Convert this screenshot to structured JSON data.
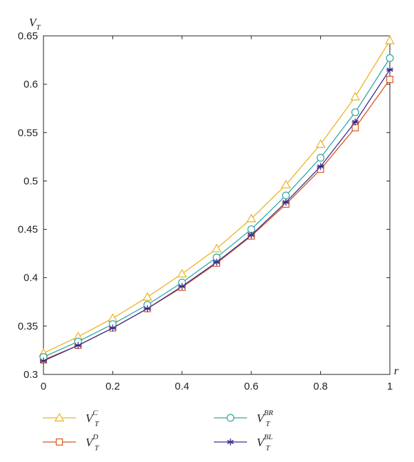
{
  "chart_data": {
    "type": "line",
    "xlabel": "r",
    "ylabel": {
      "main": "V",
      "sub": "T"
    },
    "xlim": [
      0,
      1
    ],
    "ylim": [
      0.3,
      0.65
    ],
    "x": [
      0,
      0.1,
      0.2,
      0.3,
      0.4,
      0.5,
      0.6,
      0.7,
      0.8,
      0.9,
      1.0
    ],
    "xticks": [
      "0",
      "0.2",
      "0.4",
      "0.6",
      "0.8",
      "1"
    ],
    "yticks": [
      "0.3",
      "0.35",
      "0.4",
      "0.45",
      "0.5",
      "0.55",
      "0.6",
      "0.65"
    ],
    "grid": false,
    "legend_position": "bottom",
    "series": [
      {
        "name": "V_T^C",
        "main": "V",
        "sub": "T",
        "sup": "C",
        "marker": "triangle",
        "color": "#EDB120",
        "values": [
          0.322,
          0.339,
          0.358,
          0.38,
          0.404,
          0.43,
          0.461,
          0.496,
          0.538,
          0.587,
          0.645
        ]
      },
      {
        "name": "V_T^D",
        "main": "V",
        "sub": "T",
        "sup": "D",
        "marker": "square",
        "color": "#D95319",
        "values": [
          0.315,
          0.33,
          0.348,
          0.368,
          0.39,
          0.415,
          0.443,
          0.476,
          0.512,
          0.555,
          0.605
        ]
      },
      {
        "name": "V_T^BR",
        "main": "V",
        "sub": "T",
        "sup": "BR",
        "marker": "circle",
        "color": "#2CA7A4",
        "values": [
          0.318,
          0.334,
          0.352,
          0.372,
          0.395,
          0.421,
          0.45,
          0.485,
          0.524,
          0.571,
          0.627
        ]
      },
      {
        "name": "V_T^BL",
        "main": "V",
        "sub": "T",
        "sup": "BL",
        "marker": "star",
        "color": "#3A2A8C",
        "values": [
          0.314,
          0.33,
          0.348,
          0.368,
          0.391,
          0.416,
          0.444,
          0.478,
          0.515,
          0.561,
          0.615
        ]
      }
    ]
  }
}
